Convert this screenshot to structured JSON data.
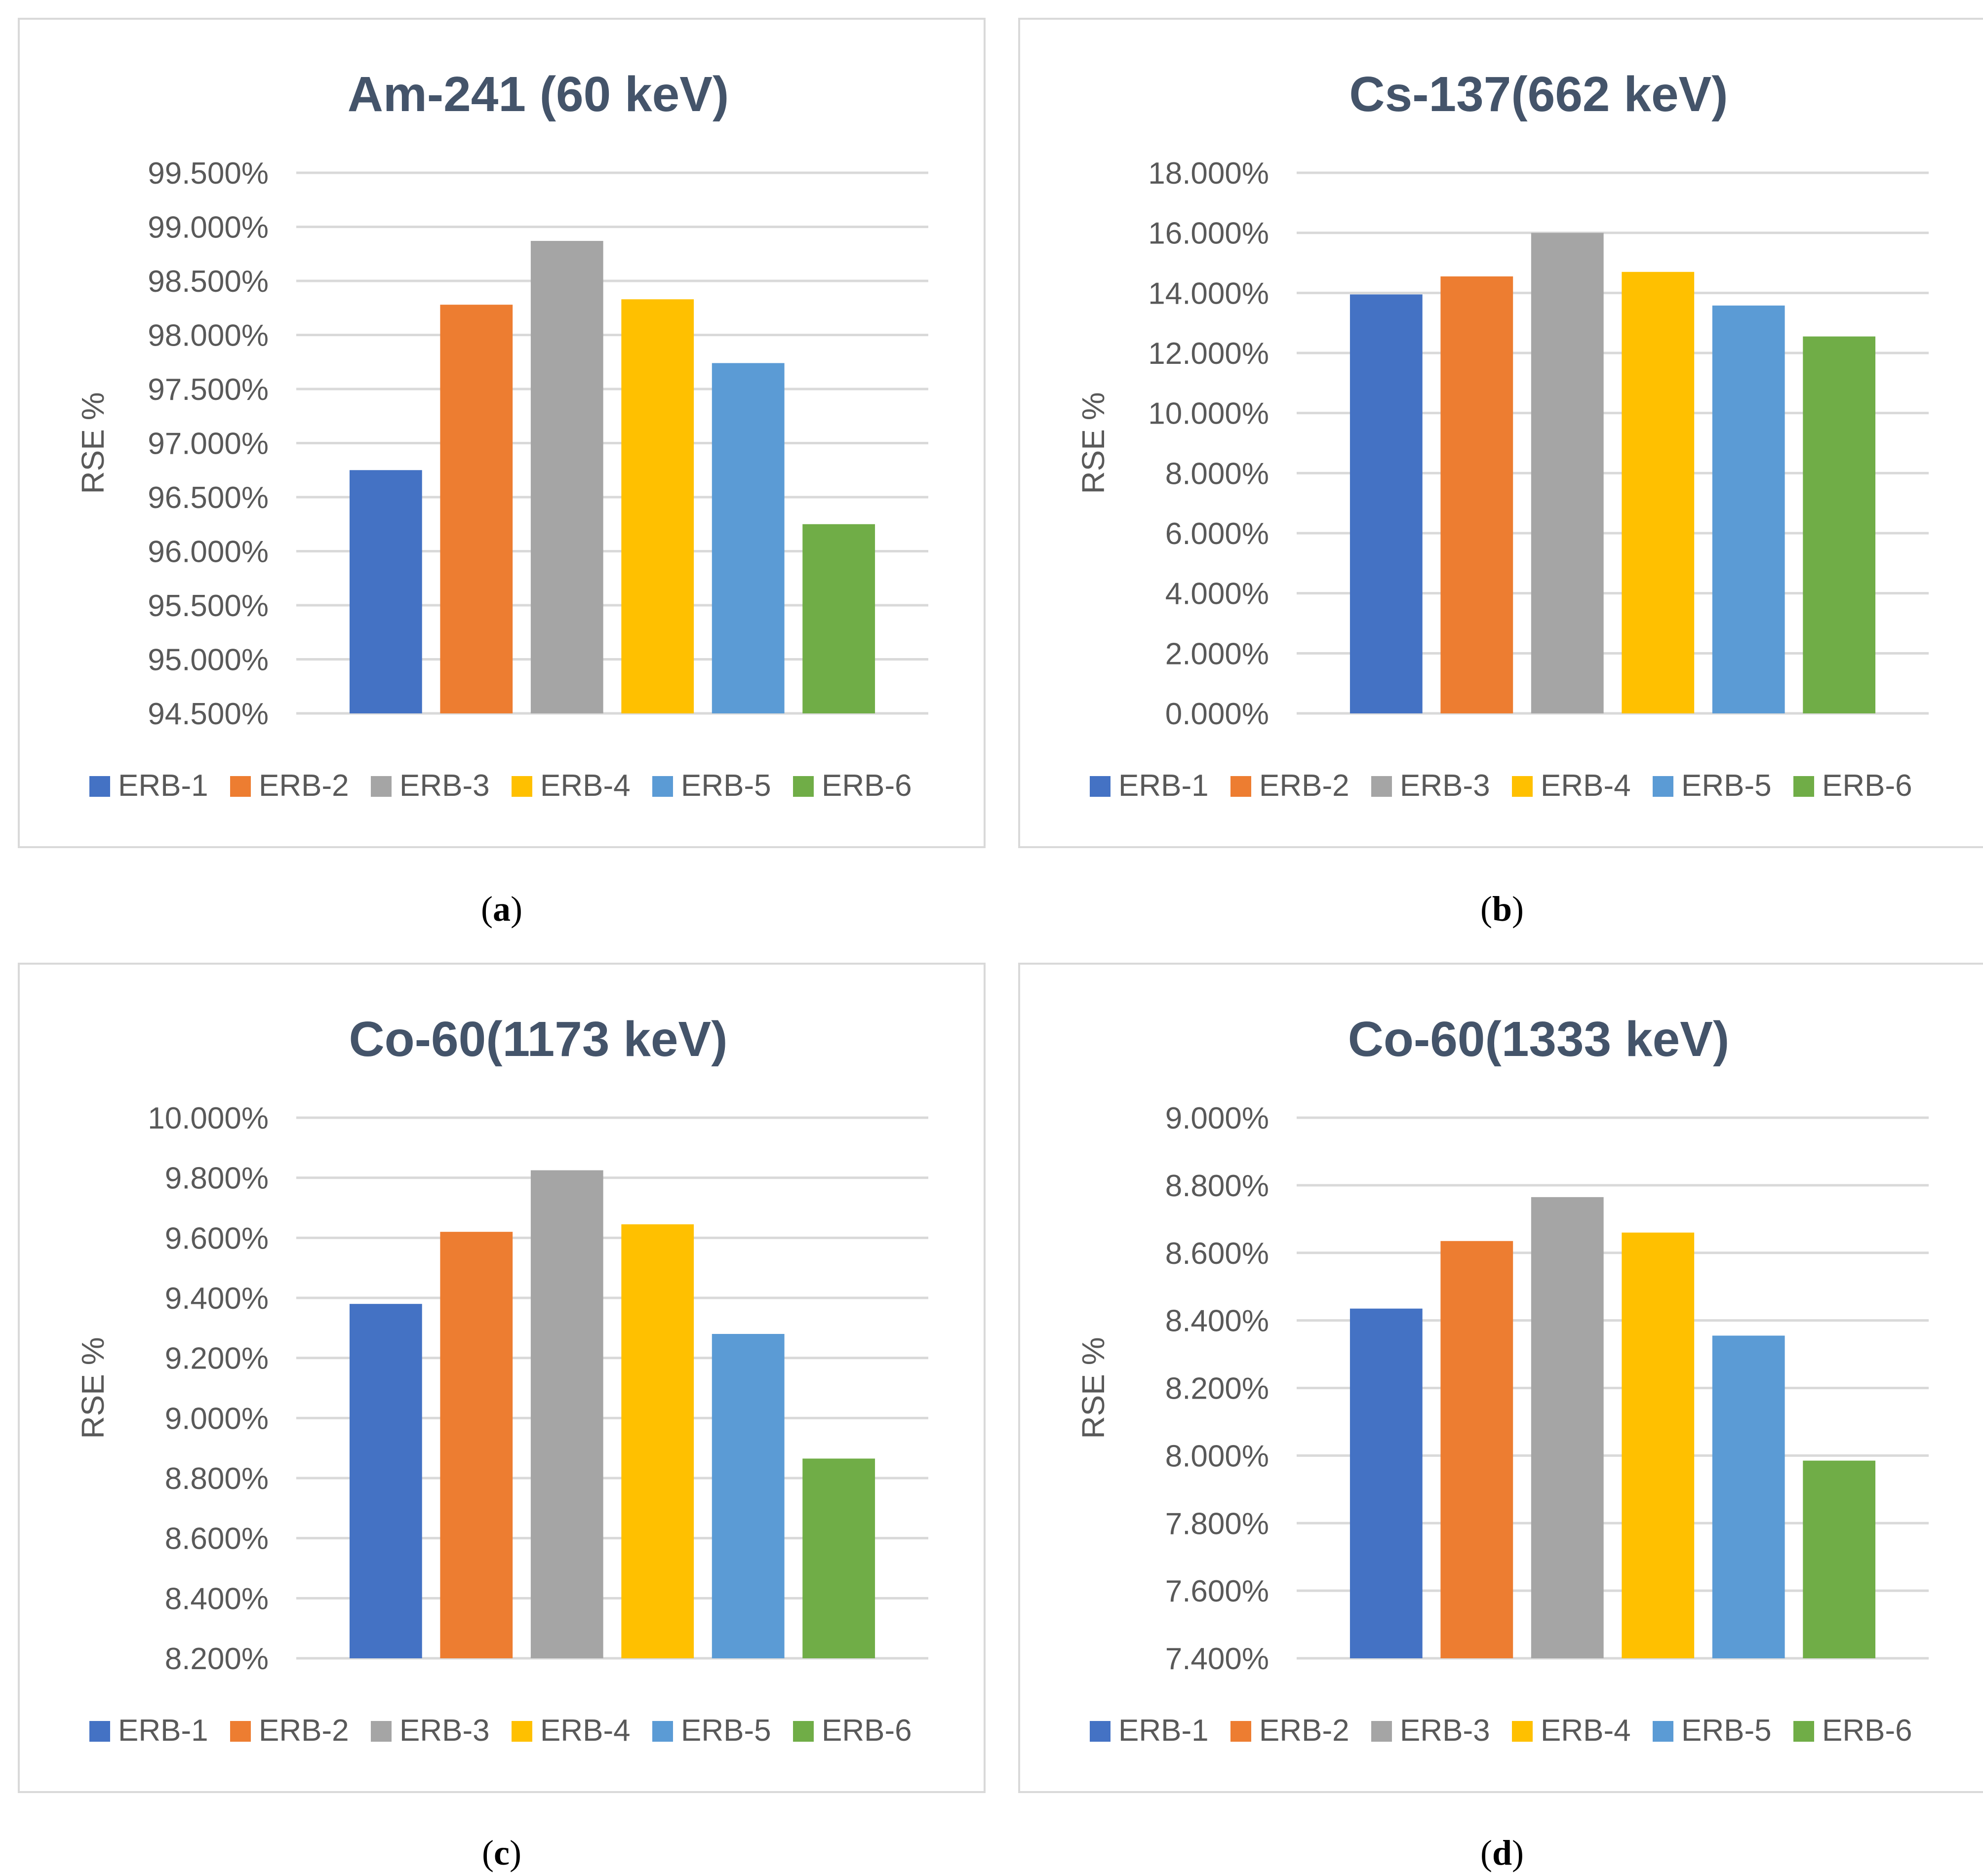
{
  "colors": {
    "series": [
      "#4472c4",
      "#ed7d31",
      "#a5a5a5",
      "#ffc000",
      "#5b9bd5",
      "#70ad47"
    ],
    "title": "#44546a",
    "axis_text": "#595959",
    "grid": "#d9d9d9",
    "border": "#d9d9d9"
  },
  "captions": {
    "a": {
      "open": "(",
      "letter": "a",
      "close": ")"
    },
    "b": {
      "open": "(",
      "letter": "b",
      "close": ")"
    },
    "c": {
      "open": "(",
      "letter": "c",
      "close": ")"
    },
    "d": {
      "open": "(",
      "letter": "d",
      "close": ")"
    }
  },
  "chart_data": [
    {
      "id": "a",
      "type": "bar",
      "title": "Am-241 (60 keV)",
      "xlabel": "",
      "ylabel": "RSE %",
      "categories": [
        "ERB-1",
        "ERB-2",
        "ERB-3",
        "ERB-4",
        "ERB-5",
        "ERB-6"
      ],
      "values": [
        96.75,
        98.28,
        98.87,
        98.33,
        97.74,
        96.25
      ],
      "ylim": [
        94.5,
        99.5
      ],
      "yticks": [
        94.5,
        95.0,
        95.5,
        96.0,
        96.5,
        97.0,
        97.5,
        98.0,
        98.5,
        99.0,
        99.5
      ],
      "tick_labels": [
        "94.500%",
        "95.000%",
        "95.500%",
        "96.000%",
        "96.500%",
        "97.000%",
        "97.500%",
        "98.000%",
        "98.500%",
        "99.000%",
        "99.500%"
      ],
      "legend": "bottom",
      "grid": true
    },
    {
      "id": "b",
      "type": "bar",
      "title": "Cs-137(662 keV)",
      "xlabel": "",
      "ylabel": "RSE %",
      "categories": [
        "ERB-1",
        "ERB-2",
        "ERB-3",
        "ERB-4",
        "ERB-5",
        "ERB-6"
      ],
      "values": [
        13.95,
        14.55,
        16.0,
        14.7,
        13.58,
        12.55
      ],
      "ylim": [
        0,
        18
      ],
      "yticks": [
        0,
        2,
        4,
        6,
        8,
        10,
        12,
        14,
        16,
        18
      ],
      "tick_labels": [
        "0.000%",
        "2.000%",
        "4.000%",
        "6.000%",
        "8.000%",
        "10.000%",
        "12.000%",
        "14.000%",
        "16.000%",
        "18.000%"
      ],
      "legend": "bottom",
      "grid": true
    },
    {
      "id": "c",
      "type": "bar",
      "title": "Co-60(1173 keV)",
      "xlabel": "",
      "ylabel": "RSE %",
      "categories": [
        "ERB-1",
        "ERB-2",
        "ERB-3",
        "ERB-4",
        "ERB-5",
        "ERB-6"
      ],
      "values": [
        9.38,
        9.62,
        9.825,
        9.645,
        9.28,
        8.865
      ],
      "ylim": [
        8.2,
        10.0
      ],
      "yticks": [
        8.2,
        8.4,
        8.6,
        8.8,
        9.0,
        9.2,
        9.4,
        9.6,
        9.8,
        10.0
      ],
      "tick_labels": [
        "8.200%",
        "8.400%",
        "8.600%",
        "8.800%",
        "9.000%",
        "9.200%",
        "9.400%",
        "9.600%",
        "9.800%",
        "10.000%"
      ],
      "legend": "bottom",
      "grid": true
    },
    {
      "id": "d",
      "type": "bar",
      "title": "Co-60(1333 keV)",
      "xlabel": "",
      "ylabel": "RSE %",
      "categories": [
        "ERB-1",
        "ERB-2",
        "ERB-3",
        "ERB-4",
        "ERB-5",
        "ERB-6"
      ],
      "values": [
        8.435,
        8.635,
        8.765,
        8.66,
        8.355,
        7.985
      ],
      "ylim": [
        7.4,
        9.0
      ],
      "yticks": [
        7.4,
        7.6,
        7.8,
        8.0,
        8.2,
        8.4,
        8.6,
        8.8,
        9.0
      ],
      "tick_labels": [
        "7.400%",
        "7.600%",
        "7.800%",
        "8.000%",
        "8.200%",
        "8.400%",
        "8.600%",
        "8.800%",
        "9.000%"
      ],
      "legend": "bottom",
      "grid": true
    }
  ]
}
